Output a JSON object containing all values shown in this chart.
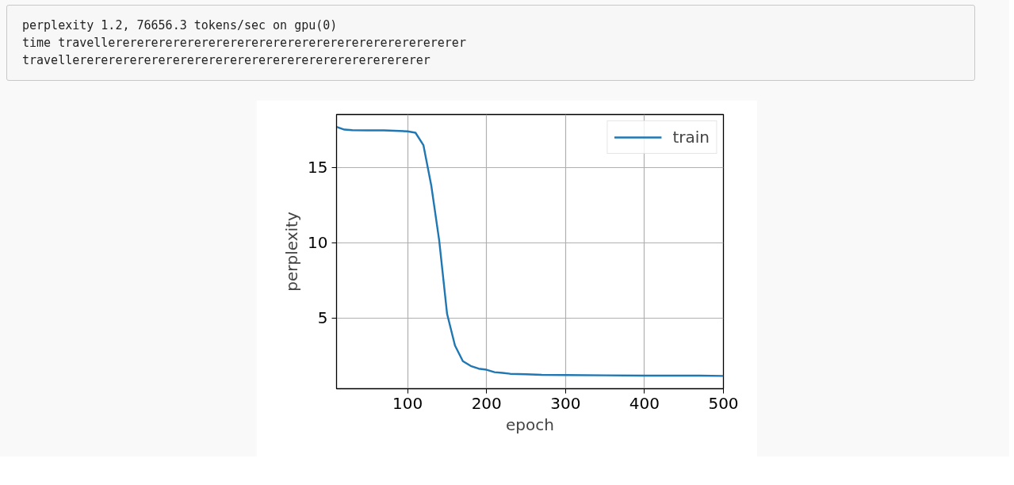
{
  "chart_data": {
    "type": "line",
    "xlabel": "epoch",
    "ylabel": "perplexity",
    "annotations": [
      "perplexity 1.2, 76656.3 tokens/sec on gpu(0)",
      "time travellererererererererererererererererererererererererer",
      "travellererererererererererererererererererererererererer"
    ],
    "x": [
      10,
      20,
      30,
      50,
      70,
      90,
      100,
      110,
      120,
      130,
      140,
      150,
      160,
      170,
      180,
      190,
      200,
      210,
      220,
      230,
      250,
      270,
      300,
      350,
      400,
      450,
      470,
      500
    ],
    "series": [
      {
        "name": "train",
        "color": "#1f77b4",
        "values": [
          17.68,
          17.5,
          17.46,
          17.45,
          17.45,
          17.41,
          17.38,
          17.29,
          16.47,
          13.78,
          10.14,
          5.27,
          3.17,
          2.13,
          1.81,
          1.63,
          1.56,
          1.4,
          1.35,
          1.29,
          1.26,
          1.22,
          1.21,
          1.19,
          1.17,
          1.17,
          1.17,
          1.15
        ]
      }
    ],
    "xlim": [
      10,
      500
    ],
    "ylim": [
      0.3,
      18.5
    ],
    "xticks": [
      100,
      200,
      300,
      400,
      500
    ],
    "yticks": [
      5,
      10,
      15
    ],
    "grid": true,
    "legend": "top right",
    "line_style": "solid",
    "marker": "none"
  }
}
